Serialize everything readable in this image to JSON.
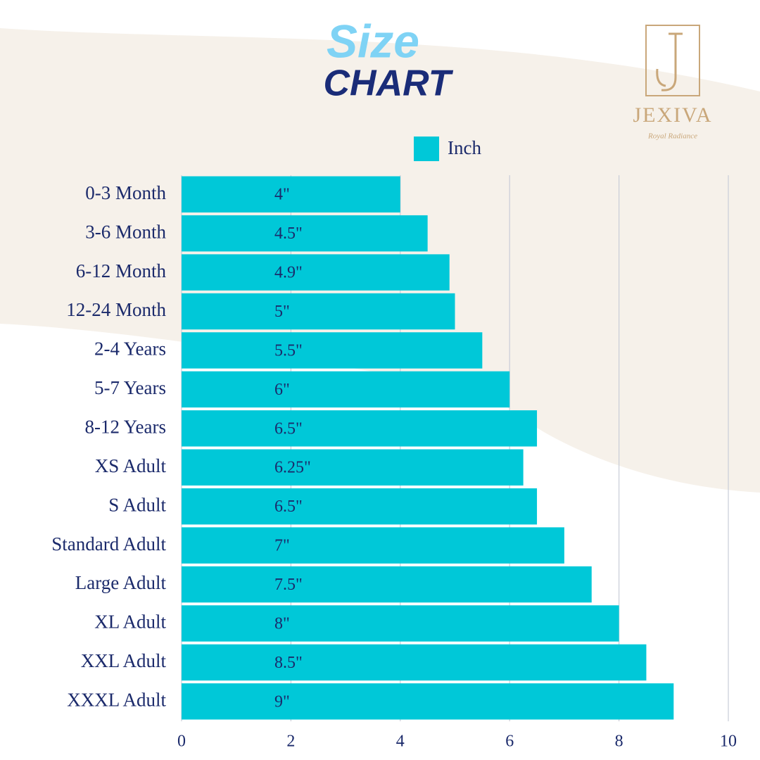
{
  "chart_data": {
    "type": "barh",
    "title": "Size",
    "subtitle": "CHART",
    "categories": [
      "0-3 Month",
      "3-6 Month",
      "6-12 Month",
      "12-24 Month",
      "2-4 Years",
      "5-7 Years",
      "8-12 Years",
      "XS Adult",
      "S Adult",
      "Standard Adult",
      "Large Adult",
      "XL Adult",
      "XXL Adult",
      "XXXL Adult"
    ],
    "series": [
      {
        "name": "Inch",
        "color": "#00c8d8",
        "values": [
          4,
          4.5,
          4.9,
          5,
          5.5,
          6,
          6.5,
          6.25,
          6.5,
          7,
          7.5,
          8,
          8.5,
          9
        ],
        "value_labels": [
          "4\"",
          "4.5\"",
          "4.9\"",
          "5\"",
          "5.5\"",
          "6\"",
          "6.5\"",
          "6.25\"",
          "6.5\"",
          "7\"",
          "7.5\"",
          "8\"",
          "8.5\"",
          "9\""
        ]
      }
    ],
    "xlim": [
      0,
      10
    ],
    "xticks": [
      0,
      2,
      4,
      6,
      8,
      10
    ],
    "grid": true,
    "legend": "top"
  },
  "brand": {
    "name": "JEXIVA",
    "tagline": "Royal Radiance"
  }
}
